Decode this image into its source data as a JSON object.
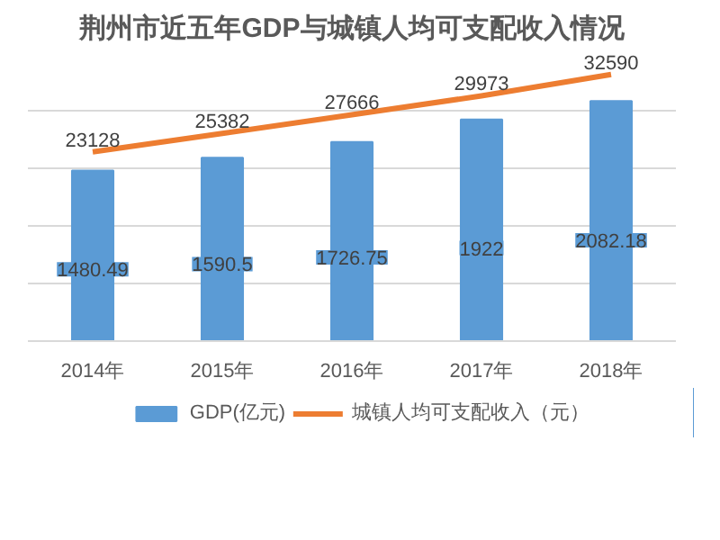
{
  "chart_data": {
    "type": "bar",
    "title": "荆州市近五年GDP与城镇人均可支配收入情况",
    "categories": [
      "2014年",
      "2015年",
      "2016年",
      "2017年",
      "2018年"
    ],
    "series": [
      {
        "name": "GDP(亿元)",
        "color": "#5b9bd5",
        "values": [
          1480.49,
          1590.5,
          1726.75,
          1922,
          2082.18
        ]
      },
      {
        "name": "城镇人均可支配收入（元）",
        "type": "line",
        "axis": "y2",
        "color": "#ed7d31",
        "values": [
          23128,
          25382,
          27666,
          29973,
          32590
        ]
      }
    ],
    "data_labels": true,
    "grid": "y",
    "legend": "bottom",
    "tick_labels": "x"
  }
}
